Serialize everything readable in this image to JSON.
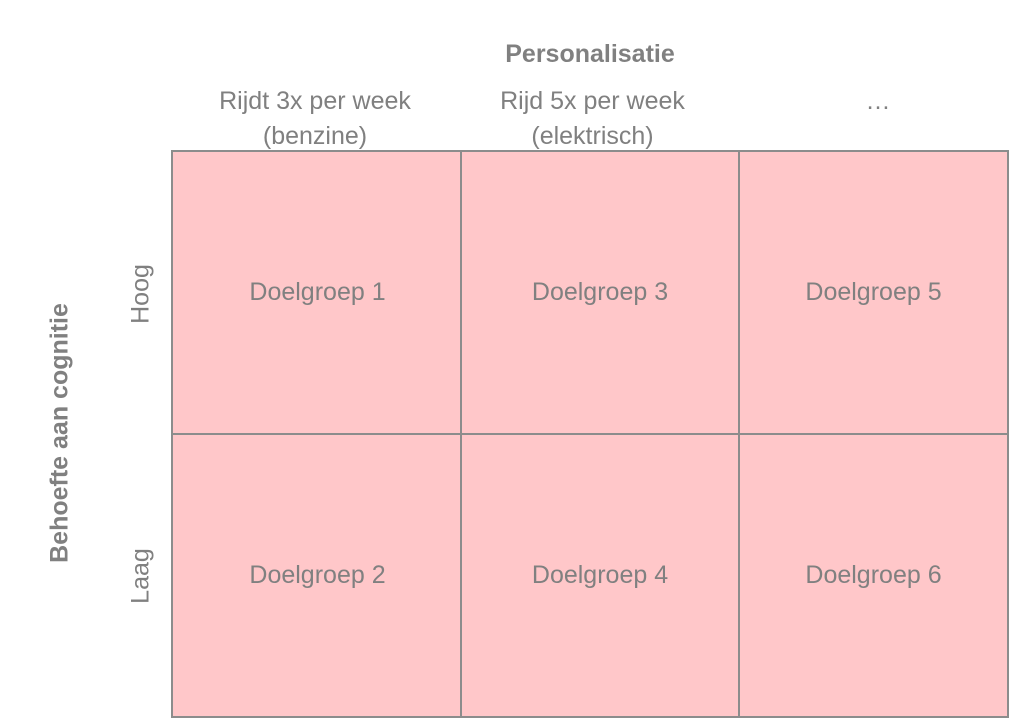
{
  "x_axis": {
    "title": "Personalisatie",
    "columns": [
      {
        "line1": "Rijdt 3x per week",
        "line2": "(benzine)"
      },
      {
        "line1": "Rijd 5x per week",
        "line2": "(elektrisch)"
      },
      {
        "line1": "",
        "line2": "…"
      }
    ]
  },
  "y_axis": {
    "title": "Behoefte aan cognitie",
    "rows": [
      "Hoog",
      "Laag"
    ]
  },
  "cells": [
    [
      "Doelgroep 1",
      "Doelgroep 3",
      "Doelgroep 5"
    ],
    [
      "Doelgroep 2",
      "Doelgroep 4",
      "Doelgroep 6"
    ]
  ],
  "colors": {
    "cell_fill": "#ffc7c9",
    "border": "#8c8c8c",
    "text": "#808080"
  }
}
